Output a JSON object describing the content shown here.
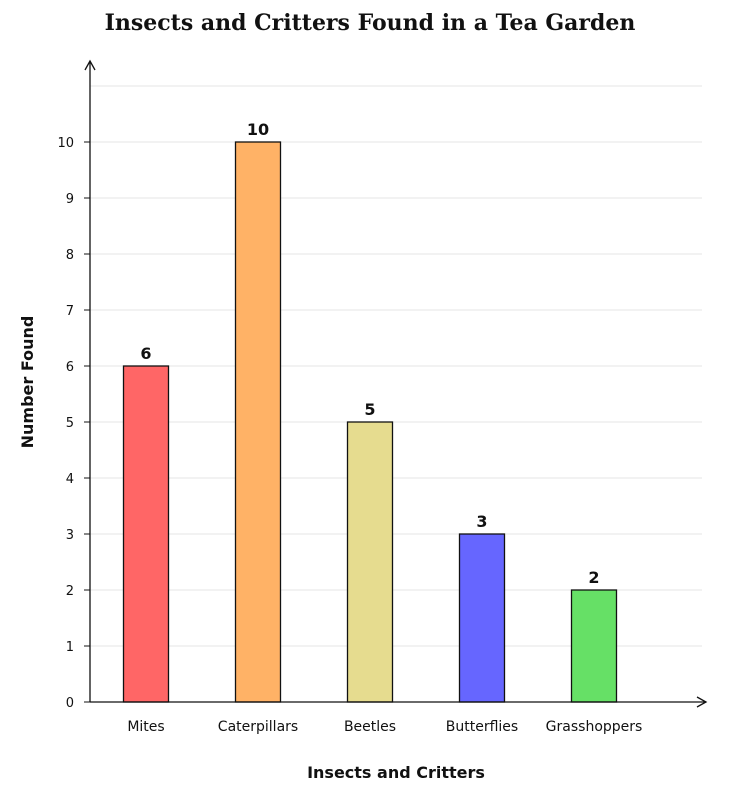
{
  "chart_data": {
    "type": "bar",
    "title": "Insects and Critters Found in a Tea Garden",
    "xlabel": "Insects and Critters",
    "ylabel": "Number Found",
    "categories": [
      "Mites",
      "Caterpillars",
      "Beetles",
      "Butterflies",
      "Grasshoppers"
    ],
    "values": [
      6,
      10,
      5,
      3,
      2
    ],
    "colors": [
      "#ff6666",
      "#ffb266",
      "#e6dc8f",
      "#6666ff",
      "#66e066"
    ],
    "ylim": [
      0,
      11
    ],
    "yticks": [
      0,
      1,
      2,
      3,
      4,
      5,
      6,
      7,
      8,
      9,
      10
    ],
    "grid": true,
    "data_labels": true
  }
}
